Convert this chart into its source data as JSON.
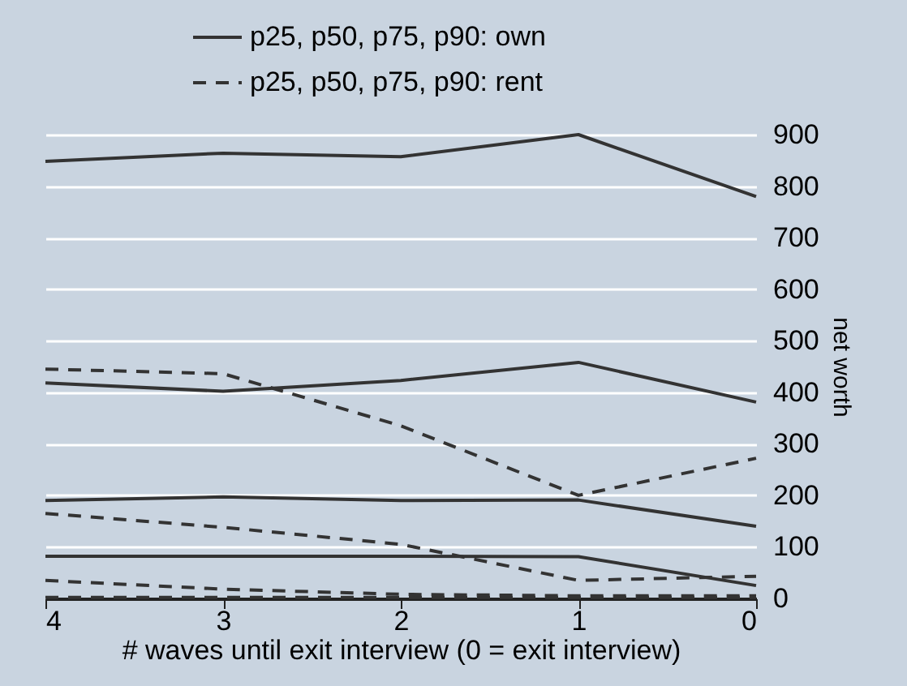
{
  "chart_data": {
    "type": "line",
    "xlabel": "# waves until exit interview (0 = exit interview)",
    "ylabel": "net worth",
    "x": [
      4,
      3,
      2,
      1,
      0
    ],
    "xlim": [
      4,
      0
    ],
    "xticks": [
      4,
      3,
      2,
      1,
      0
    ],
    "ylim": [
      0,
      900
    ],
    "yticks": [
      0,
      100,
      200,
      300,
      400,
      500,
      600,
      700,
      800,
      900
    ],
    "grid": "y",
    "legend": "top",
    "series": [
      {
        "name": "p25, p50, p75, p90: own",
        "color": "#333333",
        "line_style": "solid",
        "values": [
          82,
          82,
          82,
          81,
          25
        ]
      },
      {
        "color": "#333333",
        "line_style": "solid",
        "values": [
          190,
          197,
          190,
          191,
          140
        ]
      },
      {
        "color": "#333333",
        "line_style": "solid",
        "values": [
          418,
          402,
          423,
          458,
          381
        ]
      },
      {
        "color": "#333333",
        "line_style": "solid",
        "values": [
          848,
          864,
          857,
          900,
          780
        ]
      },
      {
        "name": "p25, p50, p75, p90: rent",
        "color": "#333333",
        "line_style": "dashed",
        "values": [
          2,
          2,
          2,
          2,
          2
        ]
      },
      {
        "color": "#333333",
        "line_style": "dashed",
        "values": [
          35,
          18,
          8,
          5,
          5
        ]
      },
      {
        "color": "#333333",
        "line_style": "dashed",
        "values": [
          165,
          138,
          105,
          35,
          43
        ]
      },
      {
        "color": "#333333",
        "line_style": "dashed",
        "values": [
          445,
          436,
          335,
          200,
          272
        ]
      }
    ]
  }
}
